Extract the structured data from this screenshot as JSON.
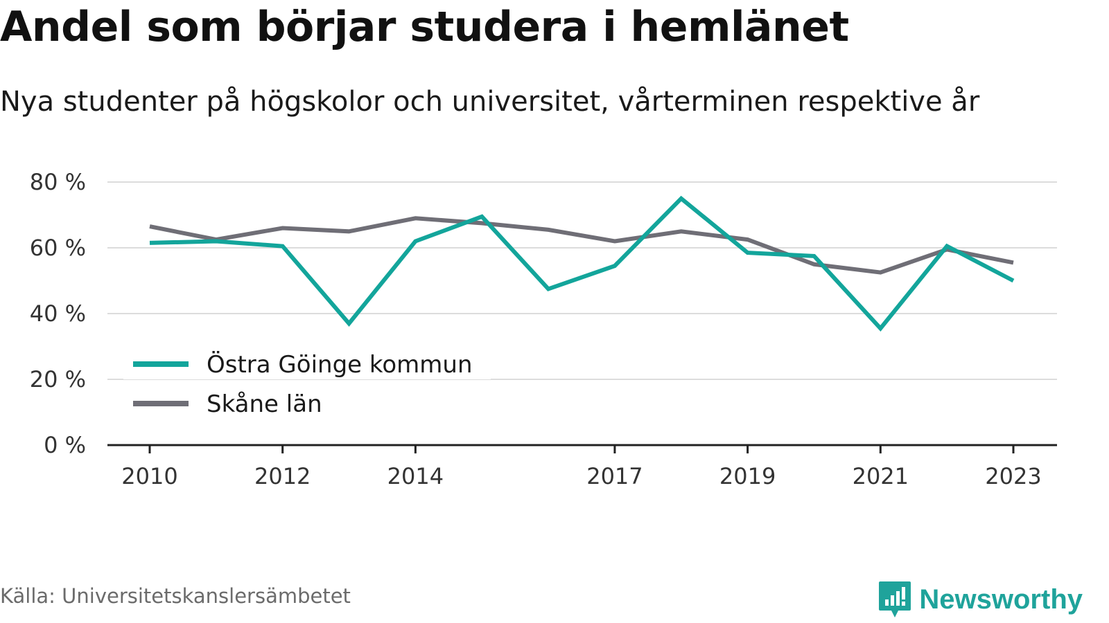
{
  "title": "Andel som börjar studera i hemlänet",
  "subtitle": "Nya studenter på högskolor och universitet, vårterminen respektive år",
  "source": "Källa: Universitetskanslersämbetet",
  "brand": {
    "name": "Newsworthy",
    "icon": "newsworthy-logo-icon",
    "color": "#1fa39b"
  },
  "chart_data": {
    "type": "line",
    "x": [
      2010,
      2011,
      2012,
      2013,
      2014,
      2015,
      2016,
      2017,
      2018,
      2019,
      2020,
      2021,
      2022,
      2023
    ],
    "x_tick_labels": [
      "2010",
      "2012",
      "2014",
      "2017",
      "2019",
      "2021",
      "2023"
    ],
    "y_tick_labels": [
      "0 %",
      "20 %",
      "40 %",
      "60 %",
      "80 %"
    ],
    "ylim": [
      0,
      80
    ],
    "y_ticks": [
      0,
      20,
      40,
      60,
      80
    ],
    "grid": true,
    "legend_position": "bottom-left",
    "series": [
      {
        "name": "Östra Göinge kommun",
        "color": "#13a59b",
        "values": [
          61.5,
          62,
          60.5,
          37,
          62,
          69.5,
          47.5,
          54.5,
          75,
          58.5,
          57.5,
          35.5,
          60.5,
          50
        ]
      },
      {
        "name": "Skåne län",
        "color": "#6f6e76",
        "values": [
          66.5,
          62.5,
          66,
          65,
          69,
          67.5,
          65.5,
          62,
          65,
          62.5,
          55,
          52.5,
          59.5,
          55.5
        ]
      }
    ]
  }
}
